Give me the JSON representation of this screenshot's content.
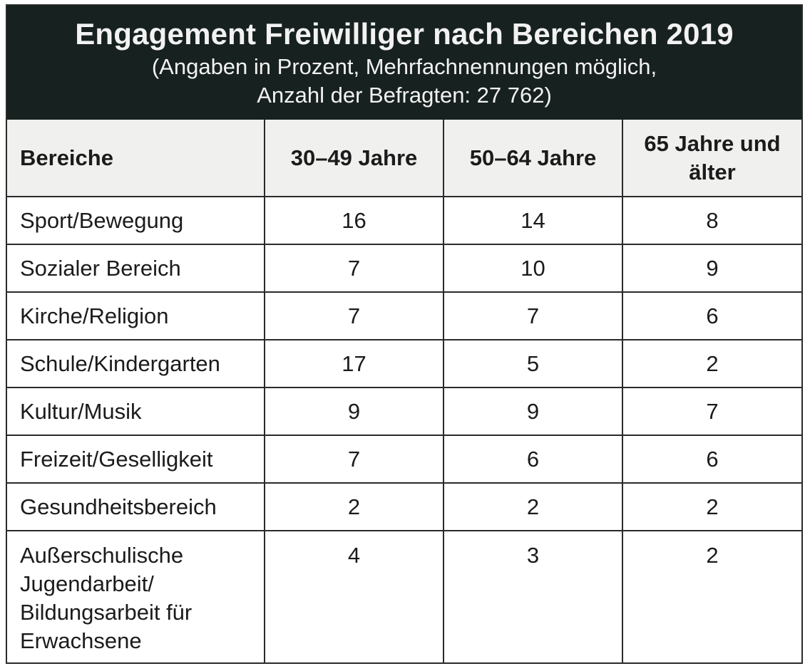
{
  "title": "Engagement Freiwilliger nach Bereichen 2019",
  "subtitle_line1": "(Angaben in Prozent, Mehrfachnennungen möglich,",
  "subtitle_line2": "Anzahl der Befragten: 27 762)",
  "columns": [
    "Bereiche",
    "30–49 Jahre",
    "50–64 Jahre",
    "65 Jahre und älter"
  ],
  "rows": [
    {
      "bereich": "Sport/Bewegung",
      "values": [
        "16",
        "14",
        "8"
      ]
    },
    {
      "bereich": "Sozialer Bereich",
      "values": [
        "7",
        "10",
        "9"
      ]
    },
    {
      "bereich": "Kirche/Religion",
      "values": [
        "7",
        "7",
        "6"
      ]
    },
    {
      "bereich": "Schule/Kindergarten",
      "values": [
        "17",
        "5",
        "2"
      ]
    },
    {
      "bereich": "Kultur/Musik",
      "values": [
        "9",
        "9",
        "7"
      ]
    },
    {
      "bereich": "Freizeit/Geselligkeit",
      "values": [
        "7",
        "6",
        "6"
      ]
    },
    {
      "bereich": "Gesundheitsbereich",
      "values": [
        "2",
        "2",
        "2"
      ]
    },
    {
      "bereich": "Außerschulische Jugendarbeit/ Bildungsarbeit für Erwachsene",
      "values": [
        "4",
        "3",
        "2"
      ]
    }
  ],
  "colors": {
    "title_background": "#17211f",
    "title_text": "#f2f2f2",
    "header_background": "#f0f1ef",
    "grid_lines": "#2a2a2a"
  }
}
